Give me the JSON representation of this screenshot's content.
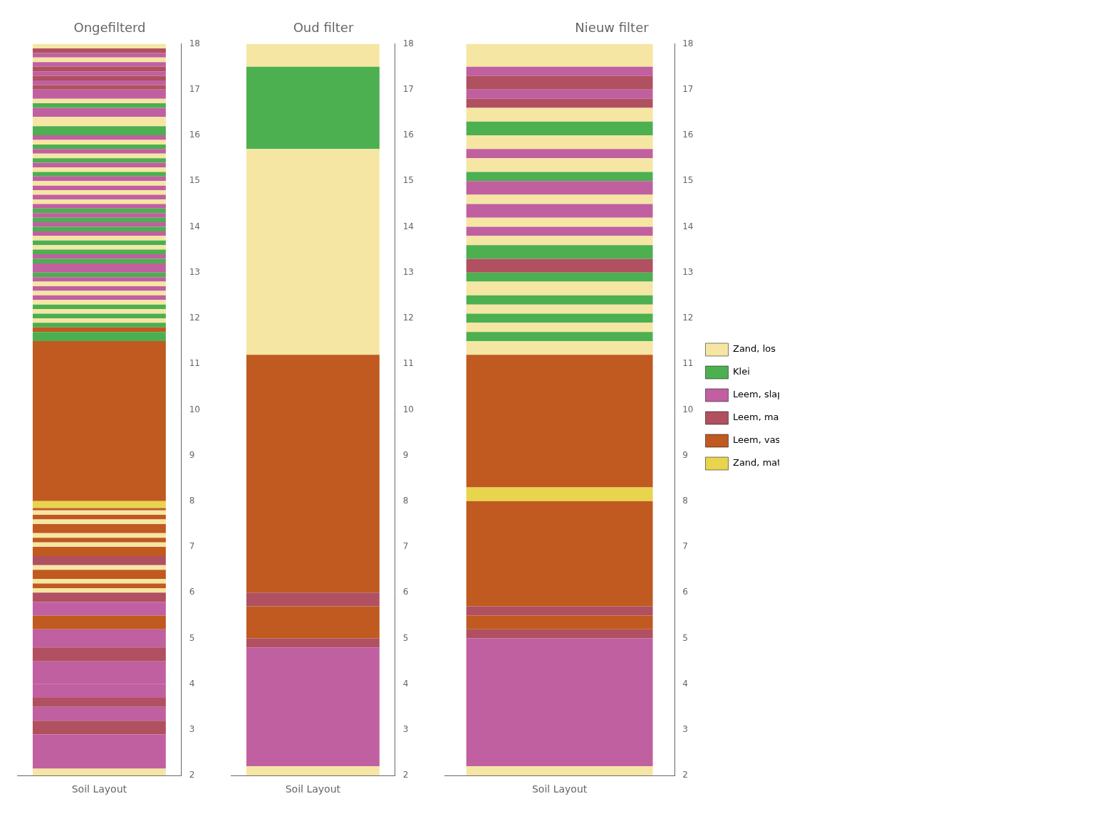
{
  "chart_data": {
    "type": "bar",
    "xlabel": "Soil Layout",
    "ylim": [
      2,
      18
    ],
    "yticks": [
      2,
      3,
      4,
      5,
      6,
      7,
      8,
      9,
      10,
      11,
      12,
      13,
      14,
      15,
      16,
      17,
      18
    ],
    "grid": false,
    "tick_labels": "y",
    "legend": "right",
    "series": [
      {
        "name": "Zand, los",
        "color": "#f5e6a3"
      },
      {
        "name": "Klei",
        "color": "#4caf50"
      },
      {
        "name": "Leem, slap",
        "color": "#c060a0"
      },
      {
        "name": "Leem, matig",
        "color": "#b05060"
      },
      {
        "name": "Leem, vast",
        "color": "#c05a20"
      },
      {
        "name": "Zand, matig",
        "color": "#e8d44d"
      }
    ],
    "panels": [
      {
        "title": "Ongefilterd",
        "layers": [
          {
            "bottom": 2.0,
            "top": 2.15,
            "soil": "Zand, los"
          },
          {
            "bottom": 2.15,
            "top": 2.9,
            "soil": "Leem, slap"
          },
          {
            "bottom": 2.9,
            "top": 3.2,
            "soil": "Leem, matig"
          },
          {
            "bottom": 3.2,
            "top": 3.5,
            "soil": "Leem, slap"
          },
          {
            "bottom": 3.5,
            "top": 3.7,
            "soil": "Leem, matig"
          },
          {
            "bottom": 3.7,
            "top": 4.0,
            "soil": "Leem, slap"
          },
          {
            "bottom": 4.0,
            "top": 4.5,
            "soil": "Leem, slap"
          },
          {
            "bottom": 4.5,
            "top": 4.8,
            "soil": "Leem, matig"
          },
          {
            "bottom": 4.8,
            "top": 5.2,
            "soil": "Leem, slap"
          },
          {
            "bottom": 5.2,
            "top": 5.5,
            "soil": "Leem, vast"
          },
          {
            "bottom": 5.5,
            "top": 5.8,
            "soil": "Leem, slap"
          },
          {
            "bottom": 5.8,
            "top": 6.0,
            "soil": "Leem, matig"
          },
          {
            "bottom": 6.0,
            "top": 6.1,
            "soil": "Zand, los"
          },
          {
            "bottom": 6.1,
            "top": 6.2,
            "soil": "Leem, vast"
          },
          {
            "bottom": 6.2,
            "top": 6.3,
            "soil": "Zand, los"
          },
          {
            "bottom": 6.3,
            "top": 6.5,
            "soil": "Leem, vast"
          },
          {
            "bottom": 6.5,
            "top": 6.6,
            "soil": "Zand, los"
          },
          {
            "bottom": 6.6,
            "top": 6.8,
            "soil": "Leem, matig"
          },
          {
            "bottom": 6.8,
            "top": 7.0,
            "soil": "Leem, vast"
          },
          {
            "bottom": 7.0,
            "top": 7.1,
            "soil": "Zand, los"
          },
          {
            "bottom": 7.1,
            "top": 7.2,
            "soil": "Leem, vast"
          },
          {
            "bottom": 7.2,
            "top": 7.3,
            "soil": "Zand, los"
          },
          {
            "bottom": 7.3,
            "top": 7.5,
            "soil": "Leem, vast"
          },
          {
            "bottom": 7.5,
            "top": 7.6,
            "soil": "Zand, los"
          },
          {
            "bottom": 7.6,
            "top": 7.7,
            "soil": "Leem, vast"
          },
          {
            "bottom": 7.7,
            "top": 7.8,
            "soil": "Zand, los"
          },
          {
            "bottom": 7.8,
            "top": 7.85,
            "soil": "Leem, vast"
          },
          {
            "bottom": 7.85,
            "top": 8.0,
            "soil": "Zand, matig"
          },
          {
            "bottom": 8.0,
            "top": 11.5,
            "soil": "Leem, vast"
          },
          {
            "bottom": 11.5,
            "top": 11.7,
            "soil": "Klei"
          },
          {
            "bottom": 11.7,
            "top": 11.8,
            "soil": "Leem, vast"
          },
          {
            "bottom": 11.8,
            "top": 11.9,
            "soil": "Klei"
          },
          {
            "bottom": 11.9,
            "top": 12.0,
            "soil": "Zand, los"
          },
          {
            "bottom": 12.0,
            "top": 12.1,
            "soil": "Klei"
          },
          {
            "bottom": 12.1,
            "top": 12.2,
            "soil": "Zand, los"
          },
          {
            "bottom": 12.2,
            "top": 12.3,
            "soil": "Klei"
          },
          {
            "bottom": 12.3,
            "top": 12.4,
            "soil": "Zand, los"
          },
          {
            "bottom": 12.4,
            "top": 12.5,
            "soil": "Leem, slap"
          },
          {
            "bottom": 12.5,
            "top": 12.6,
            "soil": "Zand, los"
          },
          {
            "bottom": 12.6,
            "top": 12.7,
            "soil": "Leem, slap"
          },
          {
            "bottom": 12.7,
            "top": 12.8,
            "soil": "Zand, los"
          },
          {
            "bottom": 12.8,
            "top": 12.9,
            "soil": "Leem, slap"
          },
          {
            "bottom": 12.9,
            "top": 13.0,
            "soil": "Klei"
          },
          {
            "bottom": 13.0,
            "top": 13.2,
            "soil": "Leem, slap"
          },
          {
            "bottom": 13.2,
            "top": 13.3,
            "soil": "Klei"
          },
          {
            "bottom": 13.3,
            "top": 13.4,
            "soil": "Leem, slap"
          },
          {
            "bottom": 13.4,
            "top": 13.5,
            "soil": "Klei"
          },
          {
            "bottom": 13.5,
            "top": 13.6,
            "soil": "Zand, los"
          },
          {
            "bottom": 13.6,
            "top": 13.7,
            "soil": "Klei"
          },
          {
            "bottom": 13.7,
            "top": 13.8,
            "soil": "Zand, los"
          },
          {
            "bottom": 13.8,
            "top": 13.9,
            "soil": "Leem, slap"
          },
          {
            "bottom": 13.9,
            "top": 14.0,
            "soil": "Klei"
          },
          {
            "bottom": 14.0,
            "top": 14.1,
            "soil": "Leem, slap"
          },
          {
            "bottom": 14.1,
            "top": 14.2,
            "soil": "Klei"
          },
          {
            "bottom": 14.2,
            "top": 14.3,
            "soil": "Leem, slap"
          },
          {
            "bottom": 14.3,
            "top": 14.4,
            "soil": "Klei"
          },
          {
            "bottom": 14.4,
            "top": 14.5,
            "soil": "Leem, slap"
          },
          {
            "bottom": 14.5,
            "top": 14.6,
            "soil": "Zand, los"
          },
          {
            "bottom": 14.6,
            "top": 14.7,
            "soil": "Leem, slap"
          },
          {
            "bottom": 14.7,
            "top": 14.8,
            "soil": "Zand, los"
          },
          {
            "bottom": 14.8,
            "top": 14.9,
            "soil": "Leem, slap"
          },
          {
            "bottom": 14.9,
            "top": 15.0,
            "soil": "Zand, los"
          },
          {
            "bottom": 15.0,
            "top": 15.1,
            "soil": "Leem, slap"
          },
          {
            "bottom": 15.1,
            "top": 15.2,
            "soil": "Klei"
          },
          {
            "bottom": 15.2,
            "top": 15.3,
            "soil": "Zand, los"
          },
          {
            "bottom": 15.3,
            "top": 15.4,
            "soil": "Leem, slap"
          },
          {
            "bottom": 15.4,
            "top": 15.5,
            "soil": "Klei"
          },
          {
            "bottom": 15.5,
            "top": 15.6,
            "soil": "Zand, los"
          },
          {
            "bottom": 15.6,
            "top": 15.7,
            "soil": "Leem, slap"
          },
          {
            "bottom": 15.7,
            "top": 15.8,
            "soil": "Klei"
          },
          {
            "bottom": 15.8,
            "top": 15.9,
            "soil": "Zand, los"
          },
          {
            "bottom": 15.9,
            "top": 16.0,
            "soil": "Leem, slap"
          },
          {
            "bottom": 16.0,
            "top": 16.2,
            "soil": "Klei"
          },
          {
            "bottom": 16.2,
            "top": 16.4,
            "soil": "Zand, los"
          },
          {
            "bottom": 16.4,
            "top": 16.6,
            "soil": "Leem, slap"
          },
          {
            "bottom": 16.6,
            "top": 16.7,
            "soil": "Klei"
          },
          {
            "bottom": 16.7,
            "top": 16.8,
            "soil": "Zand, los"
          },
          {
            "bottom": 16.8,
            "top": 17.0,
            "soil": "Leem, slap"
          },
          {
            "bottom": 17.0,
            "top": 17.1,
            "soil": "Leem, matig"
          },
          {
            "bottom": 17.1,
            "top": 17.2,
            "soil": "Leem, slap"
          },
          {
            "bottom": 17.2,
            "top": 17.3,
            "soil": "Leem, matig"
          },
          {
            "bottom": 17.3,
            "top": 17.4,
            "soil": "Leem, slap"
          },
          {
            "bottom": 17.4,
            "top": 17.5,
            "soil": "Leem, matig"
          },
          {
            "bottom": 17.5,
            "top": 17.6,
            "soil": "Leem, slap"
          },
          {
            "bottom": 17.6,
            "top": 17.7,
            "soil": "Zand, los"
          },
          {
            "bottom": 17.7,
            "top": 17.8,
            "soil": "Leem, slap"
          },
          {
            "bottom": 17.8,
            "top": 17.9,
            "soil": "Leem, matig"
          },
          {
            "bottom": 17.9,
            "top": 18.0,
            "soil": "Zand, los"
          }
        ]
      },
      {
        "title": "Oud filter",
        "layers": [
          {
            "bottom": 2.0,
            "top": 2.2,
            "soil": "Zand, los"
          },
          {
            "bottom": 2.2,
            "top": 4.8,
            "soil": "Leem, slap"
          },
          {
            "bottom": 4.8,
            "top": 5.0,
            "soil": "Leem, matig"
          },
          {
            "bottom": 5.0,
            "top": 5.7,
            "soil": "Leem, vast"
          },
          {
            "bottom": 5.7,
            "top": 6.0,
            "soil": "Leem, matig"
          },
          {
            "bottom": 6.0,
            "top": 11.2,
            "soil": "Leem, vast"
          },
          {
            "bottom": 11.2,
            "top": 15.7,
            "soil": "Zand, los"
          },
          {
            "bottom": 15.7,
            "top": 17.5,
            "soil": "Klei"
          },
          {
            "bottom": 17.5,
            "top": 18.0,
            "soil": "Zand, los"
          }
        ]
      },
      {
        "title": "Nieuw filter",
        "layers": [
          {
            "bottom": 2.0,
            "top": 2.2,
            "soil": "Zand, los"
          },
          {
            "bottom": 2.2,
            "top": 5.0,
            "soil": "Leem, slap"
          },
          {
            "bottom": 5.0,
            "top": 5.2,
            "soil": "Leem, matig"
          },
          {
            "bottom": 5.2,
            "top": 5.5,
            "soil": "Leem, vast"
          },
          {
            "bottom": 5.5,
            "top": 5.7,
            "soil": "Leem, matig"
          },
          {
            "bottom": 5.7,
            "top": 8.0,
            "soil": "Leem, vast"
          },
          {
            "bottom": 8.0,
            "top": 8.3,
            "soil": "Zand, matig"
          },
          {
            "bottom": 8.3,
            "top": 11.2,
            "soil": "Leem, vast"
          },
          {
            "bottom": 11.2,
            "top": 11.5,
            "soil": "Zand, los"
          },
          {
            "bottom": 11.5,
            "top": 11.7,
            "soil": "Klei"
          },
          {
            "bottom": 11.7,
            "top": 11.9,
            "soil": "Zand, los"
          },
          {
            "bottom": 11.9,
            "top": 12.1,
            "soil": "Klei"
          },
          {
            "bottom": 12.1,
            "top": 12.3,
            "soil": "Zand, los"
          },
          {
            "bottom": 12.3,
            "top": 12.5,
            "soil": "Klei"
          },
          {
            "bottom": 12.5,
            "top": 12.8,
            "soil": "Zand, los"
          },
          {
            "bottom": 12.8,
            "top": 13.0,
            "soil": "Klei"
          },
          {
            "bottom": 13.0,
            "top": 13.3,
            "soil": "Leem, matig"
          },
          {
            "bottom": 13.3,
            "top": 13.6,
            "soil": "Klei"
          },
          {
            "bottom": 13.6,
            "top": 13.8,
            "soil": "Zand, los"
          },
          {
            "bottom": 13.8,
            "top": 14.0,
            "soil": "Leem, slap"
          },
          {
            "bottom": 14.0,
            "top": 14.2,
            "soil": "Zand, los"
          },
          {
            "bottom": 14.2,
            "top": 14.5,
            "soil": "Leem, slap"
          },
          {
            "bottom": 14.5,
            "top": 14.7,
            "soil": "Zand, los"
          },
          {
            "bottom": 14.7,
            "top": 15.0,
            "soil": "Leem, slap"
          },
          {
            "bottom": 15.0,
            "top": 15.2,
            "soil": "Klei"
          },
          {
            "bottom": 15.2,
            "top": 15.5,
            "soil": "Zand, los"
          },
          {
            "bottom": 15.5,
            "top": 15.7,
            "soil": "Leem, slap"
          },
          {
            "bottom": 15.7,
            "top": 16.0,
            "soil": "Zand, los"
          },
          {
            "bottom": 16.0,
            "top": 16.3,
            "soil": "Klei"
          },
          {
            "bottom": 16.3,
            "top": 16.6,
            "soil": "Zand, los"
          },
          {
            "bottom": 16.6,
            "top": 16.8,
            "soil": "Leem, matig"
          },
          {
            "bottom": 16.8,
            "top": 17.0,
            "soil": "Leem, slap"
          },
          {
            "bottom": 17.0,
            "top": 17.3,
            "soil": "Leem, matig"
          },
          {
            "bottom": 17.3,
            "top": 17.5,
            "soil": "Leem, slap"
          },
          {
            "bottom": 17.5,
            "top": 18.0,
            "soil": "Zand, los"
          }
        ]
      }
    ]
  }
}
